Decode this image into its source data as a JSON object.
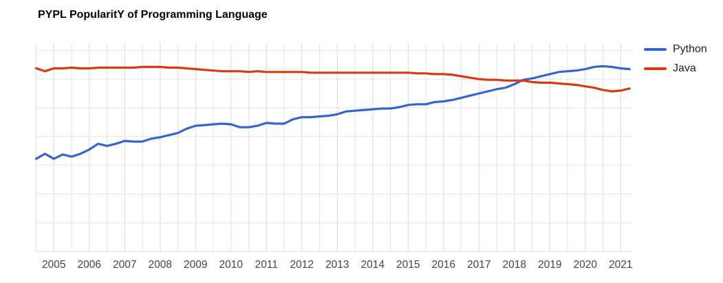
{
  "title": "PYPL PopularitY of Programming Language",
  "legend": {
    "position": "top-right-outside",
    "items": [
      {
        "label": "Python",
        "color": "#3366cc"
      },
      {
        "label": "Java",
        "color": "#dc3912"
      }
    ]
  },
  "colors": {
    "python_line": "#3366cc",
    "java_line": "#dc3912",
    "gridline": "#e2e2e2",
    "year_gridline": "#d8d8d8",
    "axis_label": "#444444",
    "background": "#ffffff",
    "title_text": "#000000"
  },
  "chart_data": {
    "type": "line",
    "title": "PYPL PopularitY of Programming Language",
    "xlabel": "",
    "ylabel": "",
    "grid": true,
    "legend_position": "top-right-outside",
    "x_tick_labels": [
      "2005",
      "2006",
      "2007",
      "2008",
      "2009",
      "2010",
      "2011",
      "2012",
      "2013",
      "2014",
      "2015",
      "2016",
      "2017",
      "2018",
      "2019",
      "2020",
      "2021"
    ],
    "y_axis": {
      "tick_labels_visible": false,
      "units": "popularity share percent (estimated; y-axis is unlabeled in image)",
      "estimated_range": [
        0,
        28.6
      ],
      "gridline_step": 4
    },
    "x_range": [
      2004.5,
      2021.25
    ],
    "x": [
      2004.5,
      2004.75,
      2005,
      2005.25,
      2005.5,
      2005.75,
      2006,
      2006.25,
      2006.5,
      2006.75,
      2007,
      2007.25,
      2007.5,
      2007.75,
      2008,
      2008.25,
      2008.5,
      2008.75,
      2009,
      2009.25,
      2009.5,
      2009.75,
      2010,
      2010.25,
      2010.5,
      2010.75,
      2011,
      2011.25,
      2011.5,
      2011.75,
      2012,
      2012.25,
      2012.5,
      2012.75,
      2013,
      2013.25,
      2013.5,
      2013.75,
      2014,
      2014.25,
      2014.5,
      2014.75,
      2015,
      2015.25,
      2015.5,
      2015.75,
      2016,
      2016.25,
      2016.5,
      2016.75,
      2017,
      2017.25,
      2017.5,
      2017.75,
      2018,
      2018.25,
      2018.5,
      2018.75,
      2019,
      2019.25,
      2019.5,
      2019.75,
      2020,
      2020.25,
      2020.5,
      2020.75,
      2021,
      2021.25
    ],
    "series": [
      {
        "name": "Python",
        "color": "#3366cc",
        "values": [
          12.9,
          13.6,
          12.9,
          13.5,
          13.2,
          13.6,
          14.2,
          15.0,
          14.7,
          15.0,
          15.4,
          15.3,
          15.3,
          15.7,
          15.9,
          16.2,
          16.5,
          17.1,
          17.5,
          17.6,
          17.7,
          17.8,
          17.7,
          17.3,
          17.3,
          17.5,
          17.9,
          17.8,
          17.8,
          18.4,
          18.7,
          18.7,
          18.8,
          18.9,
          19.1,
          19.5,
          19.6,
          19.7,
          19.8,
          19.9,
          19.9,
          20.1,
          20.4,
          20.5,
          20.5,
          20.8,
          20.9,
          21.1,
          21.4,
          21.7,
          22.0,
          22.3,
          22.6,
          22.8,
          23.3,
          23.9,
          24.1,
          24.4,
          24.7,
          25.0,
          25.1,
          25.2,
          25.4,
          25.7,
          25.8,
          25.7,
          25.5,
          25.4
        ]
      },
      {
        "name": "Java",
        "color": "#dc3912",
        "values": [
          25.5,
          25.1,
          25.5,
          25.5,
          25.6,
          25.5,
          25.5,
          25.6,
          25.6,
          25.6,
          25.6,
          25.6,
          25.7,
          25.7,
          25.7,
          25.6,
          25.6,
          25.5,
          25.4,
          25.3,
          25.2,
          25.1,
          25.1,
          25.1,
          25.0,
          25.1,
          25.0,
          25.0,
          25.0,
          25.0,
          25.0,
          24.9,
          24.9,
          24.9,
          24.9,
          24.9,
          24.9,
          24.9,
          24.9,
          24.9,
          24.9,
          24.9,
          24.9,
          24.8,
          24.8,
          24.7,
          24.7,
          24.6,
          24.4,
          24.2,
          24.0,
          23.9,
          23.9,
          23.8,
          23.8,
          23.8,
          23.6,
          23.5,
          23.5,
          23.4,
          23.3,
          23.2,
          23.0,
          22.8,
          22.5,
          22.3,
          22.4,
          22.7
        ]
      }
    ]
  }
}
